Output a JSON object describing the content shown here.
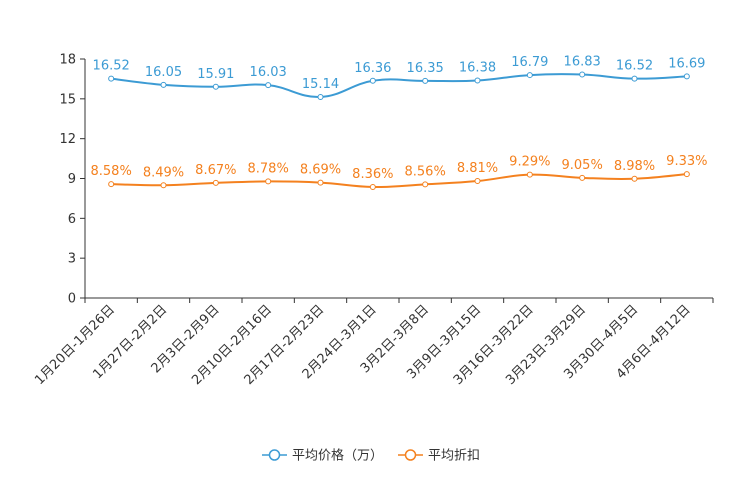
{
  "chart_data": {
    "type": "line",
    "categories": [
      "1月20日-1月26日",
      "1月27日-2月2日",
      "2月3日-2月9日",
      "2月10日-2月16日",
      "2月17日-2月23日",
      "2月24日-3月1日",
      "3月2日-3月8日",
      "3月9日-3月15日",
      "3月16日-3月22日",
      "3月23日-3月29日",
      "3月30日-4月5日",
      "4月6日-4月12日"
    ],
    "series": [
      {
        "name": "平均价格（万）",
        "color": "#3c9bd4",
        "values": [
          16.52,
          16.05,
          15.91,
          16.03,
          15.14,
          16.36,
          16.35,
          16.38,
          16.79,
          16.83,
          16.52,
          16.69
        ],
        "labels": [
          "16.52",
          "16.05",
          "15.91",
          "16.03",
          "15.14",
          "16.36",
          "16.35",
          "16.38",
          "16.79",
          "16.83",
          "16.52",
          "16.69"
        ]
      },
      {
        "name": "平均折扣",
        "color": "#f4811f",
        "values": [
          8.58,
          8.49,
          8.67,
          8.78,
          8.69,
          8.36,
          8.56,
          8.81,
          9.29,
          9.05,
          8.98,
          9.33
        ],
        "labels": [
          "8.58%",
          "8.49%",
          "8.67%",
          "8.78%",
          "8.69%",
          "8.36%",
          "8.56%",
          "8.81%",
          "9.29%",
          "9.05%",
          "8.98%",
          "9.33%"
        ]
      }
    ],
    "ylim": [
      0,
      18
    ],
    "yticks": [
      "0",
      "3",
      "6",
      "9",
      "12",
      "15",
      "18"
    ],
    "legend": "bottom-center",
    "grid": false
  }
}
